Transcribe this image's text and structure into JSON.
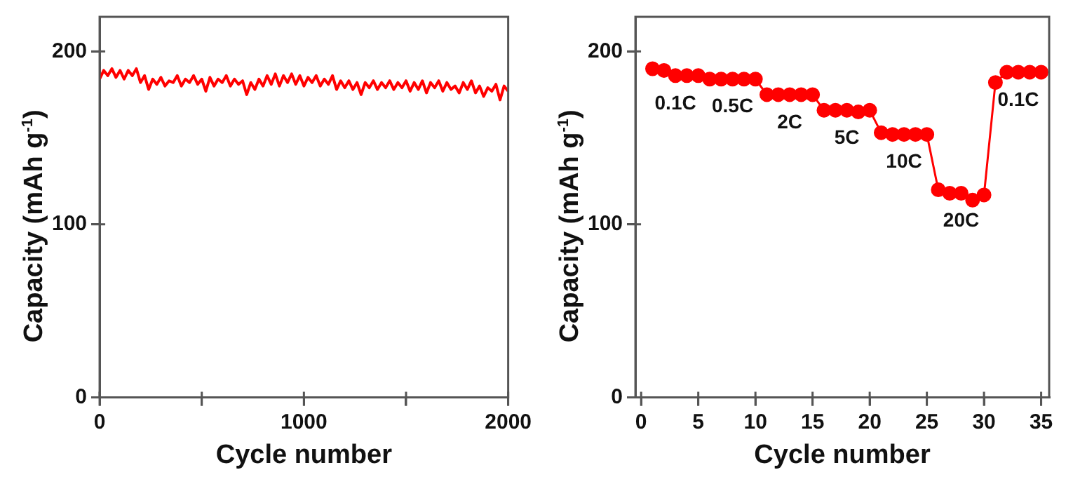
{
  "chart_data": [
    {
      "type": "line",
      "xlabel": "Cycle number",
      "ylabel": "Capacity (mAh g$^{-1}$)",
      "marker": "none",
      "xlim": [
        0,
        2000
      ],
      "ylim": [
        0,
        220
      ],
      "xticks": [
        0,
        {
          "value": 500,
          "label": null
        },
        1000,
        {
          "value": 1500,
          "label": null
        },
        2000
      ],
      "yticks": [
        0,
        100,
        200
      ],
      "x": [
        0,
        20,
        40,
        60,
        80,
        100,
        120,
        140,
        160,
        180,
        200,
        220,
        240,
        260,
        280,
        300,
        320,
        340,
        360,
        380,
        400,
        420,
        440,
        460,
        480,
        500,
        520,
        540,
        560,
        580,
        600,
        620,
        640,
        660,
        680,
        700,
        720,
        740,
        760,
        780,
        800,
        820,
        840,
        860,
        880,
        900,
        920,
        940,
        960,
        980,
        1000,
        1020,
        1040,
        1060,
        1080,
        1100,
        1120,
        1140,
        1160,
        1180,
        1200,
        1220,
        1240,
        1260,
        1280,
        1300,
        1320,
        1340,
        1360,
        1380,
        1400,
        1420,
        1440,
        1460,
        1480,
        1500,
        1520,
        1540,
        1560,
        1580,
        1600,
        1620,
        1640,
        1660,
        1680,
        1700,
        1720,
        1740,
        1760,
        1780,
        1800,
        1820,
        1840,
        1860,
        1880,
        1900,
        1920,
        1940,
        1960,
        1980,
        2000
      ],
      "series": [
        {
          "color": "#ff0000",
          "values": [
            184,
            189,
            186,
            190,
            185,
            189,
            184,
            189,
            186,
            190,
            182,
            186,
            178,
            184,
            181,
            185,
            180,
            183,
            182,
            186,
            180,
            184,
            182,
            186,
            181,
            184,
            177,
            185,
            180,
            184,
            182,
            186,
            180,
            184,
            181,
            183,
            175,
            182,
            178,
            184,
            180,
            186,
            181,
            187,
            180,
            186,
            182,
            187,
            181,
            186,
            180,
            185,
            182,
            186,
            180,
            184,
            181,
            186,
            178,
            183,
            179,
            183,
            178,
            182,
            175,
            182,
            179,
            183,
            178,
            182,
            179,
            183,
            178,
            182,
            179,
            183,
            177,
            182,
            178,
            183,
            176,
            182,
            179,
            183,
            177,
            182,
            178,
            180,
            176,
            182,
            178,
            183,
            176,
            180,
            174,
            179,
            177,
            181,
            172,
            180,
            177
          ]
        }
      ]
    },
    {
      "type": "line",
      "xlabel": "Cycle number",
      "ylabel": "Capacity (mAh g$^{-1}$)",
      "marker": "circle",
      "xlim": [
        -0.5,
        35.7
      ],
      "ylim": [
        0,
        220
      ],
      "xticks": [
        0,
        5,
        10,
        15,
        20,
        25,
        30,
        35
      ],
      "yticks": [
        0,
        100,
        200
      ],
      "x": [
        1,
        2,
        3,
        4,
        5,
        6,
        7,
        8,
        9,
        10,
        11,
        12,
        13,
        14,
        15,
        16,
        17,
        18,
        19,
        20,
        21,
        22,
        23,
        24,
        25,
        26,
        27,
        28,
        29,
        30,
        31,
        32,
        33,
        34,
        35
      ],
      "series": [
        {
          "color": "#ff0000",
          "values": [
            190,
            189,
            186,
            186,
            186,
            184,
            184,
            184,
            184,
            184,
            175,
            175,
            175,
            175,
            175,
            166,
            166,
            166,
            165,
            166,
            153,
            152,
            152,
            152,
            152,
            120,
            118,
            118,
            114,
            117,
            182,
            188,
            188,
            188,
            188
          ]
        }
      ],
      "annotations": [
        {
          "text": "0.1C",
          "x": 3,
          "y": 186
        },
        {
          "text": "0.5C",
          "x": 8,
          "y": 184
        },
        {
          "text": "2C",
          "x": 13,
          "y": 175
        },
        {
          "text": "5C",
          "x": 18,
          "y": 166
        },
        {
          "text": "10C",
          "x": 23,
          "y": 152
        },
        {
          "text": "20C",
          "x": 28,
          "y": 118
        },
        {
          "text": "0.1C",
          "x": 33,
          "y": 188
        }
      ]
    }
  ]
}
